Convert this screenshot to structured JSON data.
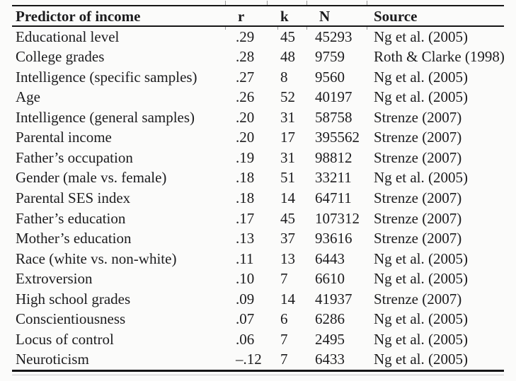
{
  "page": {
    "background": "#fbfbfa",
    "text_color": "#1c1c1e"
  },
  "table": {
    "header": {
      "predictor": "Predictor of income",
      "r": "r",
      "k": "k",
      "n": "N",
      "source": "Source"
    },
    "rows": [
      {
        "predictor": "Educational level",
        "r": ".29",
        "k": "45",
        "n": "45293",
        "source": "Ng et al. (2005)"
      },
      {
        "predictor": "College grades",
        "r": ".28",
        "k": "48",
        "n": "9759",
        "source": "Roth & Clarke (1998)"
      },
      {
        "predictor": "Intelligence (specific samples)",
        "r": ".27",
        "k": "8",
        "n": "9560",
        "source": "Ng et al. (2005)"
      },
      {
        "predictor": "Age",
        "r": ".26",
        "k": "52",
        "n": "40197",
        "source": "Ng et al. (2005)"
      },
      {
        "predictor": "Intelligence (general samples)",
        "r": ".20",
        "k": "31",
        "n": "58758",
        "source": "Strenze (2007)"
      },
      {
        "predictor": "Parental income",
        "r": ".20",
        "k": "17",
        "n": "395562",
        "source": "Strenze (2007)"
      },
      {
        "predictor": "Father’s occupation",
        "r": ".19",
        "k": "31",
        "n": "98812",
        "source": "Strenze (2007)"
      },
      {
        "predictor": "Gender (male vs. female)",
        "r": ".18",
        "k": "51",
        "n": "33211",
        "source": "Ng et al. (2005)"
      },
      {
        "predictor": "Parental SES index",
        "r": ".18",
        "k": "14",
        "n": "64711",
        "source": "Strenze (2007)"
      },
      {
        "predictor": "Father’s education",
        "r": ".17",
        "k": "45",
        "n": "107312",
        "source": "Strenze (2007)"
      },
      {
        "predictor": "Mother’s education",
        "r": ".13",
        "k": "37",
        "n": "93616",
        "source": "Strenze (2007)"
      },
      {
        "predictor": "Race (white vs. non-white)",
        "r": ".11",
        "k": "13",
        "n": "6443",
        "source": "Ng et al. (2005)"
      },
      {
        "predictor": "Extroversion",
        "r": ".10",
        "k": "7",
        "n": "6610",
        "source": "Ng et al. (2005)"
      },
      {
        "predictor": "High school grades",
        "r": ".09",
        "k": "14",
        "n": "41937",
        "source": "Strenze (2007)"
      },
      {
        "predictor": "Conscientiousness",
        "r": ".07",
        "k": "6",
        "n": "6286",
        "source": "Ng et al. (2005)"
      },
      {
        "predictor": "Locus of control",
        "r": ".06",
        "k": "7",
        "n": "2495",
        "source": "Ng et al. (2005)"
      },
      {
        "predictor": "Neuroticism",
        "r": "–.12",
        "k": "7",
        "n": "6433",
        "source": "Ng et al. (2005)"
      }
    ]
  }
}
